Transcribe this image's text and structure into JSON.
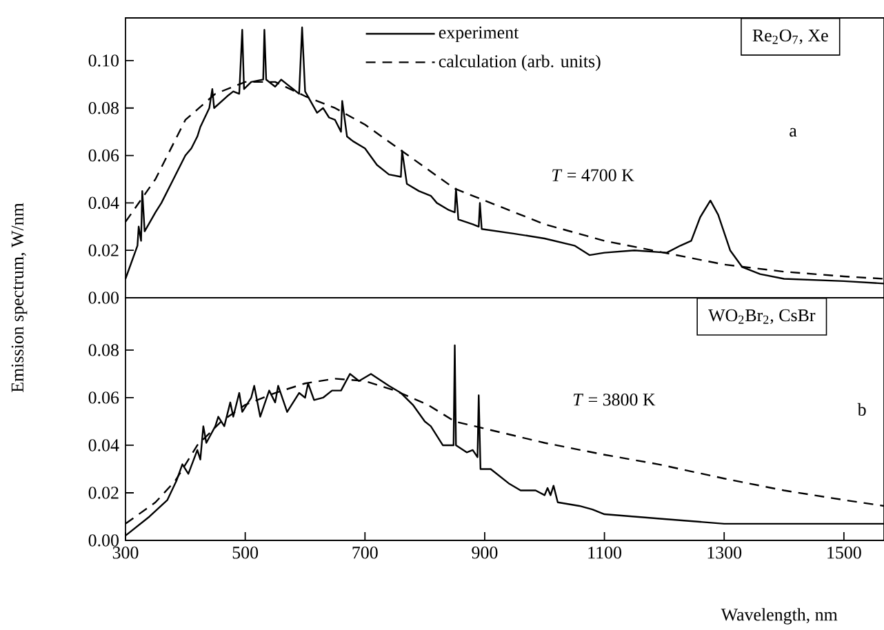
{
  "chart_data": [
    {
      "type": "line",
      "ylabel": "Emission spectrum, W/nm",
      "xlim": [
        300,
        1567
      ],
      "ylim": [
        0,
        0.118
      ],
      "yticks": [
        {
          "value": 0,
          "label": "0.00"
        },
        {
          "value": 0.02,
          "label": "0.02"
        },
        {
          "value": 0.04,
          "label": "0.04"
        },
        {
          "value": 0.06,
          "label": "0.06"
        },
        {
          "value": 0.08,
          "label": "0.08"
        },
        {
          "value": 0.1,
          "label": "0.10"
        }
      ],
      "tick_labels": "y",
      "legend": "top",
      "grid": false,
      "marker": "none",
      "annotations": [
        "Re$_{2}$O$_{7}$, Xe",
        "a",
        "*T* = 4700 K"
      ],
      "series": [
        {
          "name": "experiment",
          "color": "#000000",
          "line_style": "solid",
          "x": [
            300,
            320,
            322,
            326,
            328,
            332,
            350,
            360,
            380,
            400,
            410,
            420,
            425,
            440,
            445,
            448,
            470,
            480,
            490,
            495,
            498,
            510,
            530,
            532,
            535,
            550,
            560,
            570,
            580,
            590,
            595,
            600,
            620,
            630,
            640,
            650,
            660,
            662,
            670,
            680,
            700,
            720,
            740,
            760,
            762,
            770,
            790,
            800,
            810,
            820,
            840,
            850,
            852,
            856,
            880,
            890,
            892,
            895,
            950,
            1000,
            1050,
            1075,
            1100,
            1150,
            1204,
            1227,
            1245,
            1260,
            1277,
            1290,
            1310,
            1330,
            1360,
            1400,
            1500,
            1567
          ],
          "values": [
            0.008,
            0.022,
            0.03,
            0.024,
            0.045,
            0.028,
            0.036,
            0.04,
            0.05,
            0.06,
            0.063,
            0.068,
            0.072,
            0.08,
            0.088,
            0.08,
            0.085,
            0.087,
            0.086,
            0.113,
            0.088,
            0.091,
            0.092,
            0.113,
            0.092,
            0.089,
            0.092,
            0.09,
            0.088,
            0.086,
            0.114,
            0.087,
            0.078,
            0.08,
            0.076,
            0.075,
            0.07,
            0.083,
            0.068,
            0.066,
            0.063,
            0.056,
            0.052,
            0.051,
            0.062,
            0.048,
            0.045,
            0.044,
            0.043,
            0.04,
            0.037,
            0.036,
            0.046,
            0.033,
            0.031,
            0.03,
            0.04,
            0.029,
            0.027,
            0.025,
            0.022,
            0.018,
            0.019,
            0.02,
            0.019,
            0.022,
            0.024,
            0.034,
            0.041,
            0.035,
            0.02,
            0.013,
            0.01,
            0.008,
            0.007,
            0.006
          ]
        },
        {
          "name": "calculation (arb. units)",
          "color": "#000000",
          "line_style": "dashed",
          "x": [
            300,
            350,
            400,
            450,
            500,
            550,
            600,
            650,
            700,
            750,
            800,
            850,
            900,
            1000,
            1100,
            1200,
            1300,
            1400,
            1500,
            1567
          ],
          "values": [
            0.032,
            0.05,
            0.075,
            0.086,
            0.091,
            0.091,
            0.085,
            0.08,
            0.073,
            0.064,
            0.055,
            0.046,
            0.041,
            0.031,
            0.024,
            0.019,
            0.014,
            0.011,
            0.009,
            0.008
          ]
        }
      ]
    },
    {
      "type": "line",
      "xlabel": "Wavelength, nm",
      "xlim": [
        300,
        1567
      ],
      "ylim": [
        0,
        0.102
      ],
      "xticks": [
        300,
        500,
        700,
        900,
        1100,
        1300,
        1500
      ],
      "yticks": [
        {
          "value": 0,
          "label": "0.00"
        },
        {
          "value": 0.02,
          "label": "0.02"
        },
        {
          "value": 0.04,
          "label": "0.04"
        },
        {
          "value": 0.06,
          "label": "0.06"
        },
        {
          "value": 0.08,
          "label": "0.08"
        }
      ],
      "grid": false,
      "marker": "none",
      "annotations": [
        "WO$_{2}$Br$_{2}$, CsBr",
        "*T* = 3800 K",
        "b"
      ],
      "series": [
        {
          "color": "#000000",
          "line_style": "solid",
          "x": [
            300,
            340,
            370,
            385,
            395,
            405,
            420,
            425,
            430,
            435,
            450,
            455,
            465,
            475,
            480,
            490,
            495,
            510,
            515,
            525,
            540,
            550,
            555,
            570,
            590,
            600,
            605,
            615,
            630,
            645,
            660,
            675,
            690,
            710,
            740,
            760,
            780,
            800,
            810,
            830,
            848,
            850,
            852,
            870,
            880,
            888,
            890,
            893,
            910,
            940,
            960,
            985,
            1000,
            1005,
            1010,
            1015,
            1022,
            1058,
            1080,
            1100,
            1200,
            1300,
            1567
          ],
          "values": [
            0.002,
            0.01,
            0.017,
            0.025,
            0.032,
            0.028,
            0.038,
            0.034,
            0.048,
            0.041,
            0.048,
            0.052,
            0.048,
            0.058,
            0.052,
            0.062,
            0.054,
            0.06,
            0.065,
            0.052,
            0.063,
            0.058,
            0.065,
            0.054,
            0.062,
            0.06,
            0.066,
            0.059,
            0.06,
            0.063,
            0.063,
            0.07,
            0.067,
            0.07,
            0.065,
            0.062,
            0.057,
            0.05,
            0.048,
            0.04,
            0.04,
            0.082,
            0.04,
            0.037,
            0.038,
            0.035,
            0.061,
            0.03,
            0.03,
            0.024,
            0.021,
            0.021,
            0.019,
            0.022,
            0.019,
            0.023,
            0.016,
            0.0145,
            0.013,
            0.011,
            0.009,
            0.007,
            0.007
          ]
        },
        {
          "color": "#000000",
          "line_style": "dashed",
          "x": [
            300,
            350,
            383,
            420,
            460,
            500,
            550,
            600,
            650,
            700,
            750,
            805,
            850,
            900,
            1000,
            1100,
            1190,
            1300,
            1400,
            1500,
            1567
          ],
          "values": [
            0.007,
            0.016,
            0.025,
            0.04,
            0.05,
            0.057,
            0.062,
            0.066,
            0.068,
            0.067,
            0.063,
            0.057,
            0.05,
            0.047,
            0.041,
            0.036,
            0.032,
            0.026,
            0.021,
            0.017,
            0.0145
          ]
        }
      ]
    }
  ]
}
